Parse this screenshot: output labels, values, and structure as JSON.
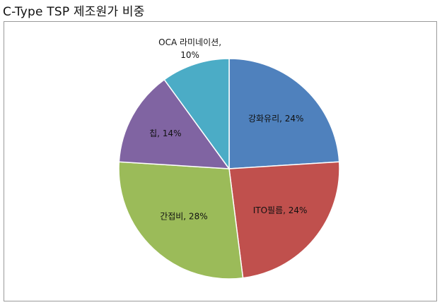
{
  "page": {
    "title": "C-Type TSP 제조원가 비중"
  },
  "chart_data": {
    "type": "pie",
    "title": "C-Type TSP 제조원가 비중",
    "slices": [
      {
        "name": "강화유리",
        "value": 24,
        "label": "강화유리, 24%",
        "color": "#4F81BD"
      },
      {
        "name": "ITO필름",
        "value": 24,
        "label": "ITO필름, 24%",
        "color": "#C0504D"
      },
      {
        "name": "간접비",
        "value": 28,
        "label": "간접비, 28%",
        "color": "#9BBB59"
      },
      {
        "name": "칩",
        "value": 14,
        "label": "칩, 14%",
        "color": "#8064A2"
      },
      {
        "name": "OCA 라미네이션",
        "value": 10,
        "label_lines": [
          "OCA 라미네이션,",
          "10%"
        ],
        "color": "#4BACC6"
      }
    ],
    "start_angle_deg": 0,
    "direction": "clockwise",
    "legend": "none"
  }
}
